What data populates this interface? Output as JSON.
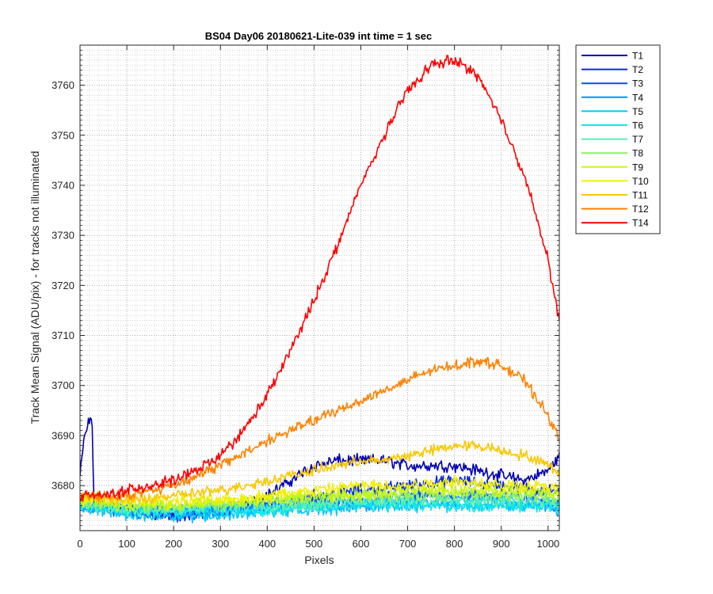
{
  "chart_data": {
    "type": "line",
    "title": "BS04 Day06 20180621-Lite-039 int time = 1 sec",
    "xlabel": "Pixels",
    "ylabel": "Track Mean Signal (ADU/pix) - for tracks not illuminated",
    "xlim": [
      0,
      1024
    ],
    "ylim": [
      3671,
      3768
    ],
    "xticks": [
      0,
      100,
      200,
      300,
      400,
      500,
      600,
      700,
      800,
      900,
      1000
    ],
    "yticks": [
      3680,
      3690,
      3700,
      3710,
      3720,
      3730,
      3740,
      3750,
      3760
    ],
    "grid": true,
    "minor_grid_y": true,
    "legend_position": "outside-top-right",
    "series": [
      {
        "name": "T1",
        "color": "#0000b4",
        "x": [
          0,
          10,
          20,
          25,
          30,
          40,
          100,
          200,
          300,
          400,
          450,
          500,
          550,
          600,
          650,
          700,
          750,
          800,
          850,
          900,
          950,
          1000,
          1024
        ],
        "values": [
          3682,
          3690,
          3693,
          3694,
          3677,
          3676,
          3675,
          3674,
          3675,
          3678,
          3681,
          3684,
          3685,
          3685,
          3685,
          3684,
          3684,
          3684,
          3683,
          3682,
          3681,
          3683,
          3686
        ]
      },
      {
        "name": "T2",
        "color": "#0a28e6",
        "x": [
          0,
          20,
          35,
          100,
          200,
          300,
          400,
          500,
          600,
          700,
          800,
          900,
          1000,
          1024
        ],
        "values": [
          3677,
          3676,
          3676,
          3675,
          3674,
          3675,
          3676,
          3678,
          3679,
          3680,
          3681,
          3680,
          3679,
          3679
        ]
      },
      {
        "name": "T3",
        "color": "#0050ff",
        "x": [
          0,
          100,
          200,
          300,
          400,
          500,
          600,
          700,
          800,
          900,
          1000,
          1024
        ],
        "values": [
          3676,
          3675,
          3675,
          3675,
          3676,
          3677,
          3677,
          3678,
          3678,
          3678,
          3677,
          3677
        ]
      },
      {
        "name": "T4",
        "color": "#0096ff",
        "x": [
          0,
          100,
          200,
          300,
          400,
          500,
          600,
          700,
          800,
          900,
          1000,
          1024
        ],
        "values": [
          3676,
          3675,
          3675,
          3675,
          3676,
          3676,
          3676,
          3677,
          3677,
          3677,
          3676,
          3676
        ]
      },
      {
        "name": "T5",
        "color": "#00c8ff",
        "x": [
          0,
          100,
          200,
          300,
          400,
          500,
          600,
          700,
          800,
          900,
          1000,
          1024
        ],
        "values": [
          3676,
          3674,
          3674,
          3674,
          3675,
          3675,
          3676,
          3676,
          3676,
          3676,
          3676,
          3675
        ]
      },
      {
        "name": "T6",
        "color": "#14e6e6",
        "x": [
          0,
          100,
          200,
          300,
          400,
          500,
          600,
          700,
          800,
          900,
          1000,
          1024
        ],
        "values": [
          3676,
          3675,
          3675,
          3675,
          3675,
          3676,
          3676,
          3676,
          3676,
          3676,
          3676,
          3676
        ]
      },
      {
        "name": "T7",
        "color": "#5af0b4",
        "x": [
          0,
          100,
          200,
          300,
          400,
          500,
          600,
          700,
          800,
          900,
          1000,
          1024
        ],
        "values": [
          3676,
          3675,
          3675,
          3676,
          3676,
          3676,
          3677,
          3677,
          3677,
          3677,
          3677,
          3676
        ]
      },
      {
        "name": "T8",
        "color": "#8cf064",
        "x": [
          0,
          100,
          200,
          300,
          400,
          500,
          600,
          700,
          800,
          900,
          1000,
          1024
        ],
        "values": [
          3677,
          3676,
          3676,
          3676,
          3677,
          3677,
          3678,
          3678,
          3678,
          3678,
          3678,
          3677
        ]
      },
      {
        "name": "T9",
        "color": "#c8f514",
        "x": [
          0,
          100,
          200,
          300,
          400,
          500,
          600,
          700,
          800,
          900,
          1000,
          1024
        ],
        "values": [
          3677,
          3676,
          3676,
          3677,
          3677,
          3678,
          3678,
          3679,
          3679,
          3679,
          3679,
          3678
        ]
      },
      {
        "name": "T10",
        "color": "#f0f000",
        "x": [
          0,
          100,
          200,
          300,
          400,
          500,
          600,
          700,
          800,
          900,
          1000,
          1024
        ],
        "values": [
          3677,
          3677,
          3677,
          3677,
          3678,
          3679,
          3680,
          3680,
          3681,
          3680,
          3680,
          3679
        ]
      },
      {
        "name": "T11",
        "color": "#fac800",
        "x": [
          0,
          100,
          200,
          300,
          400,
          450,
          500,
          550,
          600,
          650,
          700,
          750,
          800,
          850,
          900,
          950,
          1000,
          1024
        ],
        "values": [
          3678,
          3677,
          3678,
          3679,
          3681,
          3682,
          3683,
          3684,
          3685,
          3685,
          3686,
          3687,
          3688,
          3688,
          3687,
          3686,
          3684,
          3683
        ]
      },
      {
        "name": "T12",
        "color": "#ff8200",
        "x": [
          0,
          100,
          200,
          300,
          400,
          450,
          500,
          550,
          600,
          650,
          700,
          750,
          800,
          850,
          900,
          950,
          1000,
          1024
        ],
        "values": [
          3678,
          3678,
          3680,
          3684,
          3689,
          3691,
          3693,
          3695,
          3697,
          3699,
          3701,
          3703,
          3704,
          3705,
          3704,
          3701,
          3694,
          3689
        ]
      },
      {
        "name": "T14",
        "color": "#ff0000",
        "x": [
          0,
          50,
          100,
          150,
          200,
          250,
          300,
          350,
          400,
          450,
          500,
          550,
          600,
          650,
          700,
          750,
          800,
          850,
          900,
          950,
          1000,
          1024
        ],
        "values": [
          3678,
          3678,
          3679,
          3680,
          3681,
          3683,
          3686,
          3691,
          3698,
          3707,
          3717,
          3728,
          3740,
          3750,
          3759,
          3764,
          3765,
          3762,
          3753,
          3742,
          3725,
          3713
        ]
      }
    ]
  }
}
